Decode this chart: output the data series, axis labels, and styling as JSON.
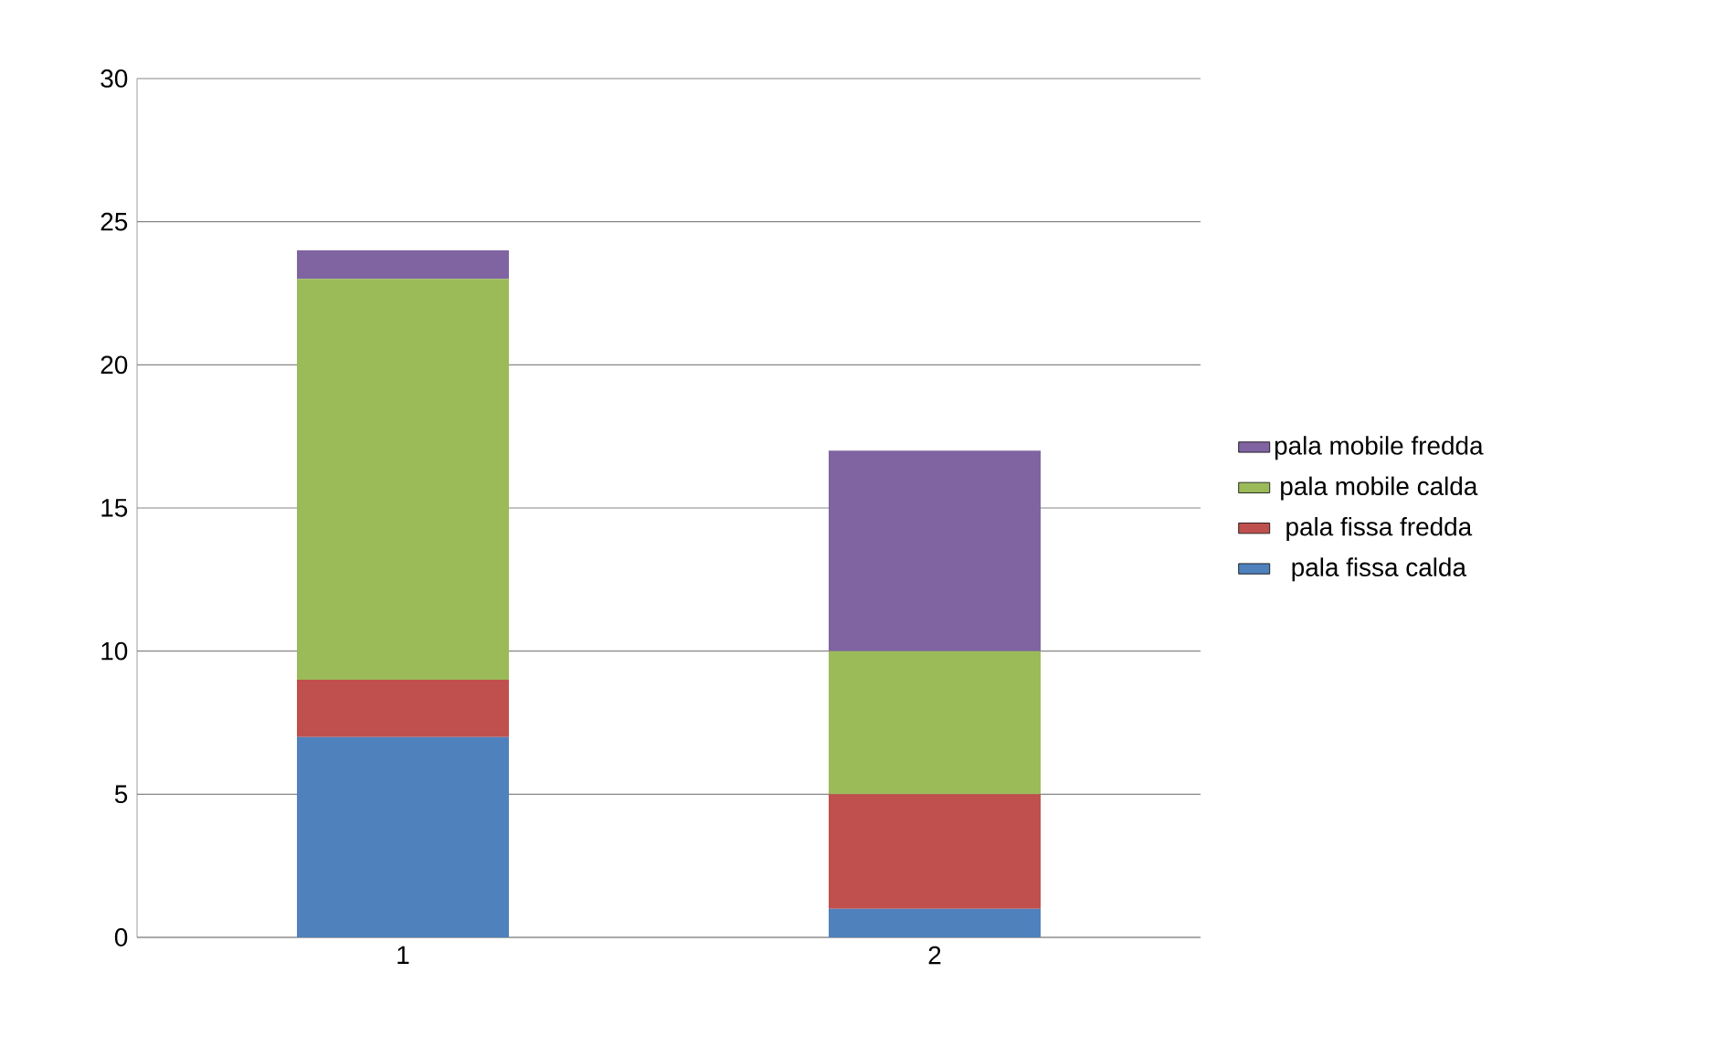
{
  "chart_data": {
    "type": "bar",
    "stacked": true,
    "categories": [
      "1",
      "2"
    ],
    "series": [
      {
        "name": "pala fissa calda",
        "color": "#4f81bd",
        "values": [
          7,
          1
        ]
      },
      {
        "name": "pala fissa fredda",
        "color": "#c0504d",
        "values": [
          2,
          4
        ]
      },
      {
        "name": "pala mobile calda",
        "color": "#9bbb59",
        "values": [
          14,
          5
        ]
      },
      {
        "name": "pala mobile fredda",
        "color": "#8064a2",
        "values": [
          1,
          7
        ]
      }
    ],
    "ylim": [
      0,
      30
    ],
    "yticks": [
      0,
      5,
      10,
      15,
      20,
      25,
      30
    ],
    "grid": "y",
    "legend": "right"
  }
}
